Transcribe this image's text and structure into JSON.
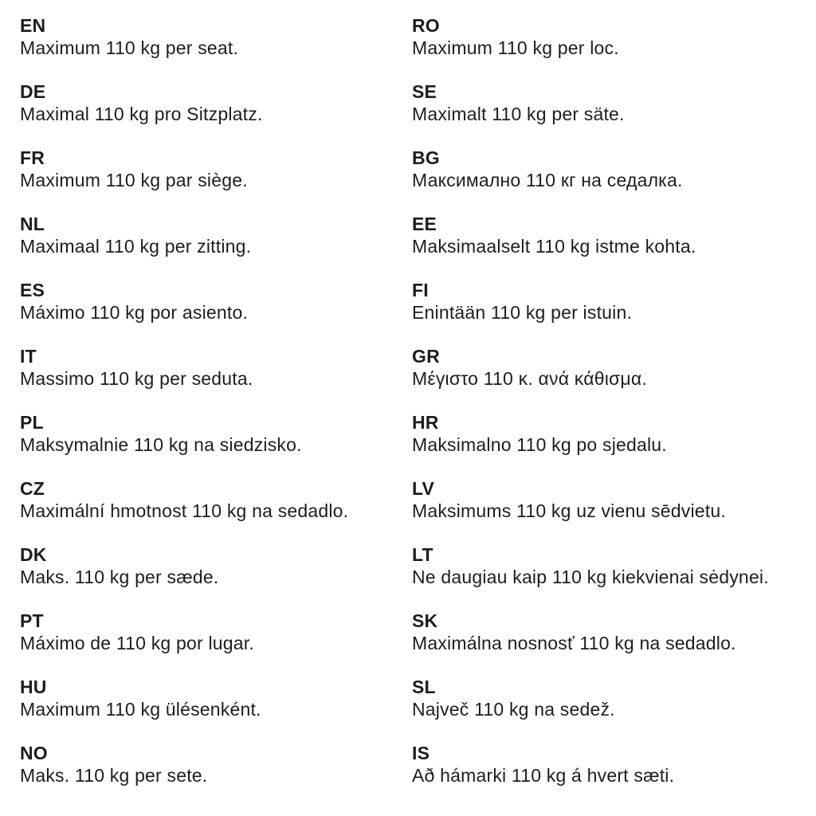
{
  "page": {
    "background_color": "#ffffff",
    "text_color": "#1d1d1d"
  },
  "columns": [
    {
      "entries": [
        {
          "code": "EN",
          "text": "Maximum 110 kg per seat."
        },
        {
          "code": "DE",
          "text": "Maximal 110 kg pro Sitzplatz."
        },
        {
          "code": "FR",
          "text": "Maximum 110 kg par siège."
        },
        {
          "code": "NL",
          "text": "Maximaal 110 kg per zitting."
        },
        {
          "code": "ES",
          "text": "Máximo 110 kg por asiento."
        },
        {
          "code": "IT",
          "text": "Massimo 110 kg per seduta."
        },
        {
          "code": "PL",
          "text": "Maksymalnie 110 kg na siedzisko."
        },
        {
          "code": "CZ",
          "text": "Maximální hmotnost 110 kg na sedadlo."
        },
        {
          "code": "DK",
          "text": "Maks. 110 kg per sæde."
        },
        {
          "code": "PT",
          "text": "Máximo de 110 kg por lugar."
        },
        {
          "code": "HU",
          "text": "Maximum 110 kg ülésenként."
        },
        {
          "code": "NO",
          "text": "Maks. 110 kg per sete."
        }
      ]
    },
    {
      "entries": [
        {
          "code": "RO",
          "text": "Maximum 110 kg per loc."
        },
        {
          "code": "SE",
          "text": "Maximalt 110 kg per säte."
        },
        {
          "code": "BG",
          "text": "Максимално 110 кг на седалка."
        },
        {
          "code": "EE",
          "text": "Maksimaalselt 110 kg istme kohta."
        },
        {
          "code": "FI",
          "text": "Enintään 110 kg per istuin."
        },
        {
          "code": "GR",
          "text": "Μέγιστο 110 κ. ανά κάθισμα."
        },
        {
          "code": "HR",
          "text": "Maksimalno 110 kg po sjedalu."
        },
        {
          "code": "LV",
          "text": "Maksimums 110 kg uz vienu sēdvietu."
        },
        {
          "code": "LT",
          "text": "Ne daugiau kaip 110 kg kiekvienai sėdynei."
        },
        {
          "code": "SK",
          "text": "Maximálna nosnosť 110 kg na sedadlo."
        },
        {
          "code": "SL",
          "text": "Največ 110 kg na sedež."
        },
        {
          "code": "IS",
          "text": "Að hámarki 110 kg á hvert sæti."
        }
      ]
    }
  ]
}
